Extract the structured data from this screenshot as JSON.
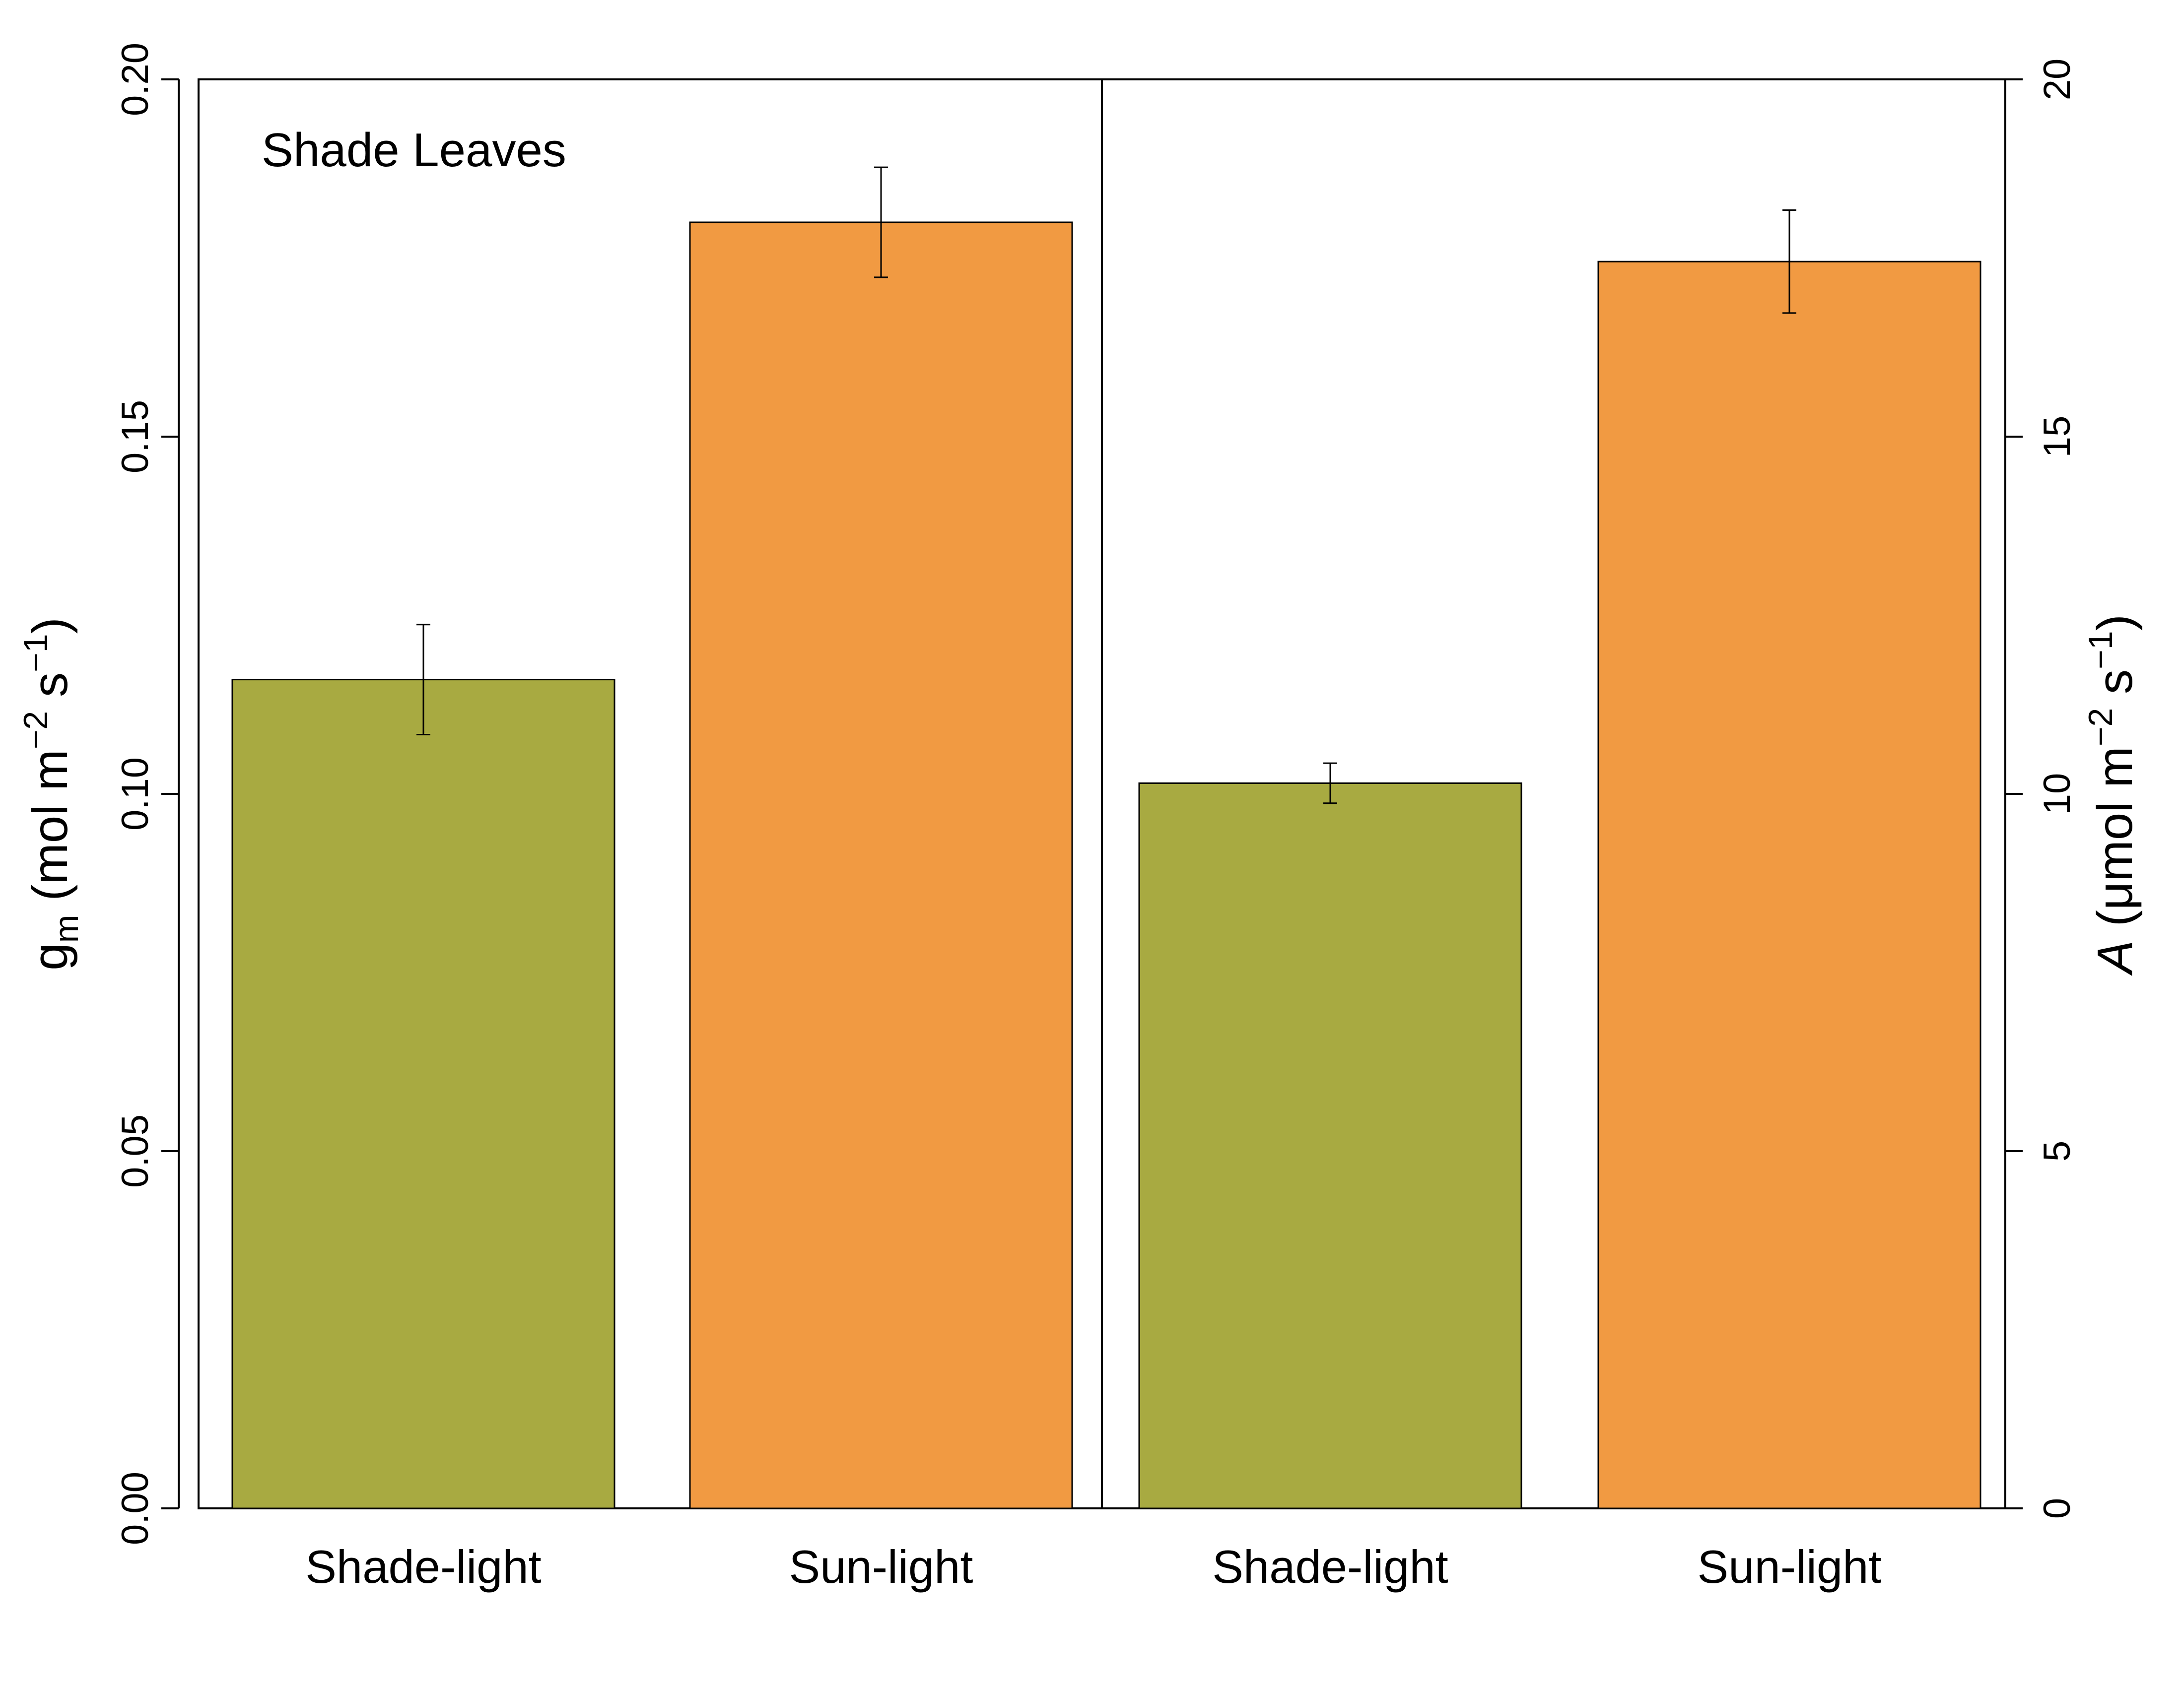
{
  "chart_data": {
    "type": "bar",
    "panel_label": "Shade Leaves",
    "colors": {
      "shade_light": "#A8AA41",
      "sun_light": "#F19A42"
    },
    "left_panel": {
      "categories": [
        "Shade-light",
        "Sun-light"
      ],
      "values": [
        0.116,
        0.18
      ],
      "errors": [
        0.0077,
        0.0077
      ],
      "ylim": [
        0,
        0.2
      ],
      "yticks": [
        "0.00",
        "0.05",
        "0.10",
        "0.15",
        "0.20"
      ],
      "ylabel": {
        "symbol": "g",
        "sub": "m",
        "units_main": "mol m",
        "exp1": "−2",
        "units_mid": " s",
        "exp2": "−1"
      }
    },
    "right_panel": {
      "categories": [
        "Shade-light",
        "Sun-light"
      ],
      "values": [
        10.15,
        17.45
      ],
      "errors": [
        0.28,
        0.72
      ],
      "ylim": [
        0,
        20
      ],
      "yticks": [
        "0",
        "5",
        "10",
        "15",
        "20"
      ],
      "ylabel": {
        "symbol": "A",
        "units_main": "μmol m",
        "exp1": "−2",
        "units_mid": " s",
        "exp2": "−1"
      }
    }
  }
}
